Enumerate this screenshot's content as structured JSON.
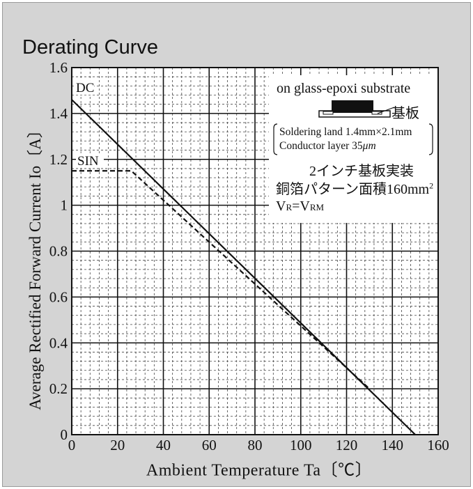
{
  "chart_data": {
    "type": "line",
    "title": "Derating Curve",
    "xlabel": "Ambient Temperature  Ta〔℃〕",
    "ylabel": "Average Rectified Forward Current  Io〔A〕",
    "xlim": [
      0,
      160
    ],
    "ylim": [
      0,
      1.6
    ],
    "x_ticks": [
      "0",
      "20",
      "40",
      "60",
      "80",
      "100",
      "120",
      "140",
      "160"
    ],
    "y_ticks": [
      "0",
      "0.2",
      "0.4",
      "0.6",
      "0.8",
      "1",
      "1.2",
      "1.4",
      "1.6"
    ],
    "grid": true,
    "series": [
      {
        "name": "DC",
        "style": "solid",
        "points": [
          [
            0,
            1.46
          ],
          [
            150,
            0
          ]
        ]
      },
      {
        "name": "SIN",
        "style": "dashed",
        "points": [
          [
            0,
            1.15
          ],
          [
            26,
            1.15
          ],
          [
            130,
            0.2
          ]
        ]
      }
    ],
    "annotations": {
      "substrate": "on glass-epoxi substrate",
      "kiban": "基板",
      "soldering": "Soldering land 1.4mm×2.1mm",
      "conductor_prefix": "Conductor layer 35",
      "conductor_unit": "μm",
      "mount": "2インチ基板実装",
      "pattern_prefix": "銅箔パターン面積160mm",
      "pattern_sup": "2",
      "vr_main": "V",
      "vr_sub1": "R",
      "vr_eq": "=V",
      "vr_sub2": "RM"
    },
    "colors": {
      "background": "#d4d4d4",
      "plot": "#ffffff",
      "line": "#111111"
    }
  }
}
